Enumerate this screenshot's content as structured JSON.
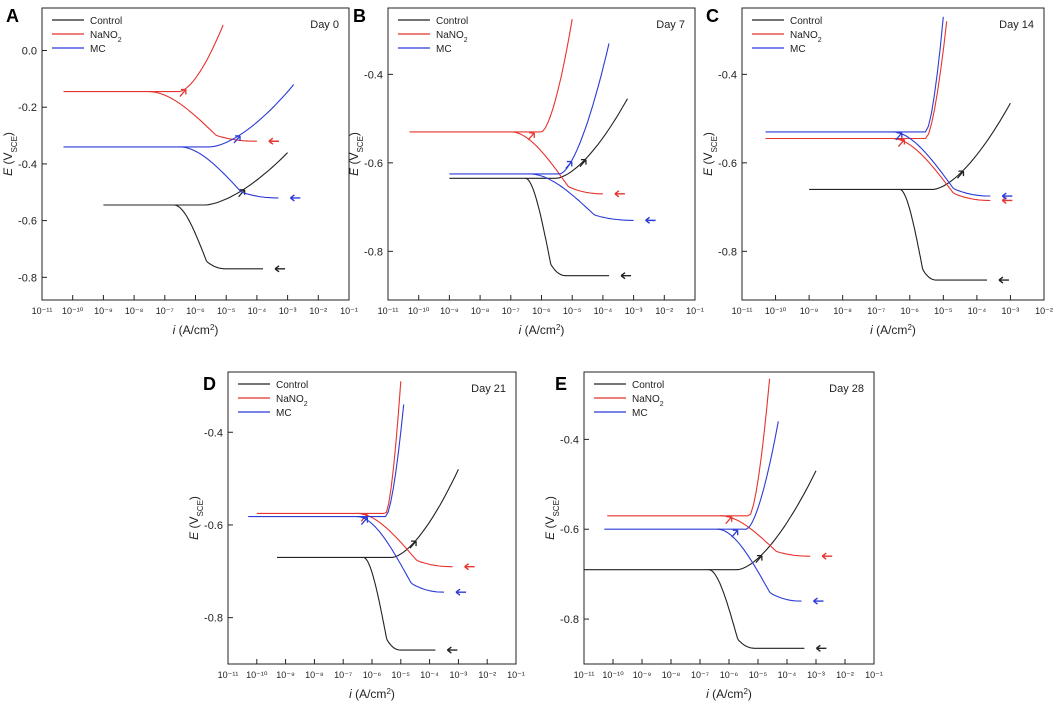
{
  "figure": {
    "colors": {
      "Control": "#222222",
      "NaNO2": "#e8332e",
      "MC": "#2b3bd6"
    },
    "legend": [
      {
        "key": "Control",
        "label": "Control",
        "sub": ""
      },
      {
        "key": "NaNO2",
        "label": "NaNO",
        "sub": "2"
      },
      {
        "key": "MC",
        "label": "MC",
        "sub": ""
      }
    ],
    "xlabel": {
      "italic": "i",
      "rest": " (A/cm",
      "sup": "2",
      "close": ")"
    },
    "ylabel": {
      "italic": "E",
      "rest": " (V",
      "sub": "SCE",
      "close": ")"
    }
  },
  "chart_data": [
    {
      "id": "A",
      "letter": "A",
      "day_label": "Day 0",
      "type": "line",
      "x_scale": "log",
      "xlim_exp": [
        -11,
        -1
      ],
      "x_tick_exponents": [
        -11,
        -10,
        -9,
        -8,
        -7,
        -6,
        -5,
        -4,
        -3,
        -2,
        -1
      ],
      "ylim": [
        -0.88,
        0.15
      ],
      "y_ticks": [
        0.0,
        -0.2,
        -0.4,
        -0.6,
        -0.8
      ],
      "y_tick_labels": [
        "0.0",
        "-0.2",
        "-0.4",
        "-0.6",
        "-0.8"
      ],
      "xlabel": "i (A/cm2)",
      "ylabel": "E (VSCE)",
      "series": [
        {
          "name": "Control",
          "ecorr": -0.545,
          "icorr": 2e-06,
          "start_exp": -9.0,
          "anodic_end_exp": -3.0,
          "anodic_end_e": -0.36,
          "cathodic_limit_exp": -5.0,
          "cathodic_end_exp": -3.8,
          "cathodic_end_e": -0.77
        },
        {
          "name": "NaNO2",
          "ecorr": -0.145,
          "icorr": 3e-07,
          "start_exp": -10.3,
          "anodic_end_exp": -5.1,
          "anodic_end_e": 0.09,
          "cathodic_limit_exp": -4.0,
          "cathodic_end_exp": -4.0,
          "cathodic_end_e": -0.32
        },
        {
          "name": "MC",
          "ecorr": -0.34,
          "icorr": 3e-06,
          "start_exp": -10.3,
          "anodic_end_exp": -2.8,
          "anodic_end_e": -0.12,
          "cathodic_limit_exp": -3.3,
          "cathodic_end_exp": -3.3,
          "cathodic_end_e": -0.52
        }
      ]
    },
    {
      "id": "B",
      "letter": "B",
      "day_label": "Day 7",
      "type": "line",
      "x_scale": "log",
      "xlim_exp": [
        -11,
        -1
      ],
      "x_tick_exponents": [
        -11,
        -10,
        -9,
        -8,
        -7,
        -6,
        -5,
        -4,
        -3,
        -2,
        -1
      ],
      "ylim": [
        -0.91,
        -0.25
      ],
      "y_ticks": [
        -0.4,
        -0.6,
        -0.8
      ],
      "y_tick_labels": [
        "-0.4",
        "-0.6",
        "-0.8"
      ],
      "xlabel": "i (A/cm2)",
      "ylabel": "E (VSCE)",
      "series": [
        {
          "name": "Control",
          "ecorr": -0.635,
          "icorr": 3e-06,
          "start_exp": -9.0,
          "anodic_end_exp": -3.2,
          "anodic_end_e": -0.455,
          "cathodic_limit_exp": -5.2,
          "cathodic_end_exp": -3.8,
          "cathodic_end_e": -0.855
        },
        {
          "name": "NaNO2",
          "ecorr": -0.53,
          "icorr": 1e-06,
          "start_exp": -10.3,
          "anodic_end_exp": -5.0,
          "anodic_end_e": -0.275,
          "cathodic_limit_exp": -4.0,
          "cathodic_end_exp": -4.0,
          "cathodic_end_e": -0.67
        },
        {
          "name": "MC",
          "ecorr": -0.625,
          "icorr": 4e-06,
          "start_exp": -9.0,
          "anodic_end_exp": -3.8,
          "anodic_end_e": -0.33,
          "cathodic_limit_exp": -3.0,
          "cathodic_end_exp": -3.0,
          "cathodic_end_e": -0.73
        }
      ]
    },
    {
      "id": "C",
      "letter": "C",
      "day_label": "Day 14",
      "type": "line",
      "x_scale": "log",
      "xlim_exp": [
        -11,
        -2
      ],
      "x_tick_exponents": [
        -11,
        -10,
        -9,
        -8,
        -7,
        -6,
        -5,
        -4,
        -3,
        -2
      ],
      "ylim": [
        -0.91,
        -0.25
      ],
      "y_ticks": [
        -0.4,
        -0.6,
        -0.8
      ],
      "y_tick_labels": [
        "-0.4",
        "-0.6",
        "-0.8"
      ],
      "xlabel": "i (A/cm2)",
      "ylabel": "E (VSCE)",
      "series": [
        {
          "name": "Control",
          "ecorr": -0.66,
          "icorr": 5e-06,
          "start_exp": -9.0,
          "anodic_end_exp": -3.0,
          "anodic_end_e": -0.465,
          "cathodic_limit_exp": -5.2,
          "cathodic_end_exp": -3.7,
          "cathodic_end_e": -0.865
        },
        {
          "name": "NaNO2",
          "ecorr": -0.545,
          "icorr": 3e-06,
          "start_exp": -10.3,
          "anodic_end_exp": -4.9,
          "anodic_end_e": -0.28,
          "cathodic_limit_exp": -3.6,
          "cathodic_end_exp": -3.6,
          "cathodic_end_e": -0.685
        },
        {
          "name": "MC",
          "ecorr": -0.53,
          "icorr": 3e-06,
          "start_exp": -10.3,
          "anodic_end_exp": -5.0,
          "anodic_end_e": -0.27,
          "cathodic_limit_exp": -3.6,
          "cathodic_end_exp": -3.6,
          "cathodic_end_e": -0.675
        }
      ]
    },
    {
      "id": "D",
      "letter": "D",
      "day_label": "Day 21",
      "type": "line",
      "x_scale": "log",
      "xlim_exp": [
        -11,
        -1
      ],
      "x_tick_exponents": [
        -11,
        -10,
        -9,
        -8,
        -7,
        -6,
        -5,
        -4,
        -3,
        -2,
        -1
      ],
      "ylim": [
        -0.9,
        -0.27
      ],
      "y_ticks": [
        -0.4,
        -0.6,
        -0.8
      ],
      "y_tick_labels": [
        "-0.4",
        "-0.6",
        "-0.8"
      ],
      "xlabel": "i (A/cm2)",
      "ylabel": "E (VSCE)",
      "series": [
        {
          "name": "Control",
          "ecorr": -0.67,
          "icorr": 5e-06,
          "start_exp": -9.3,
          "anodic_end_exp": -3.0,
          "anodic_end_e": -0.48,
          "cathodic_limit_exp": -5.0,
          "cathodic_end_exp": -3.8,
          "cathodic_end_e": -0.87
        },
        {
          "name": "NaNO2",
          "ecorr": -0.575,
          "icorr": 3e-06,
          "start_exp": -10.0,
          "anodic_end_exp": -5.0,
          "anodic_end_e": -0.29,
          "cathodic_limit_exp": -3.2,
          "cathodic_end_exp": -3.2,
          "cathodic_end_e": -0.69
        },
        {
          "name": "MC",
          "ecorr": -0.582,
          "icorr": 3e-06,
          "start_exp": -10.3,
          "anodic_end_exp": -4.9,
          "anodic_end_e": -0.34,
          "cathodic_limit_exp": -3.5,
          "cathodic_end_exp": -3.5,
          "cathodic_end_e": -0.745
        }
      ]
    },
    {
      "id": "E",
      "letter": "E",
      "day_label": "Day 28",
      "type": "line",
      "x_scale": "log",
      "xlim_exp": [
        -11,
        -1
      ],
      "x_tick_exponents": [
        -11,
        -10,
        -9,
        -8,
        -7,
        -6,
        -5,
        -4,
        -3,
        -2,
        -1
      ],
      "ylim": [
        -0.9,
        -0.25
      ],
      "y_ticks": [
        -0.4,
        -0.6,
        -0.8
      ],
      "y_tick_labels": [
        "-0.4",
        "-0.6",
        "-0.8"
      ],
      "xlabel": "i (A/cm2)",
      "ylabel": "E (VSCE)",
      "series": [
        {
          "name": "Control",
          "ecorr": -0.69,
          "icorr": 2e-06,
          "start_exp": -11.0,
          "anodic_end_exp": -3.0,
          "anodic_end_e": -0.47,
          "cathodic_limit_exp": -5.1,
          "cathodic_end_exp": -3.4,
          "cathodic_end_e": -0.865
        },
        {
          "name": "NaNO2",
          "ecorr": -0.57,
          "icorr": 5e-06,
          "start_exp": -10.2,
          "anodic_end_exp": -4.6,
          "anodic_end_e": -0.265,
          "cathodic_limit_exp": -3.2,
          "cathodic_end_exp": -3.2,
          "cathodic_end_e": -0.66
        },
        {
          "name": "MC",
          "ecorr": -0.6,
          "icorr": 4e-06,
          "start_exp": -10.3,
          "anodic_end_exp": -4.3,
          "anodic_end_e": -0.36,
          "cathodic_limit_exp": -3.5,
          "cathodic_end_exp": -3.5,
          "cathodic_end_e": -0.76
        }
      ]
    }
  ]
}
